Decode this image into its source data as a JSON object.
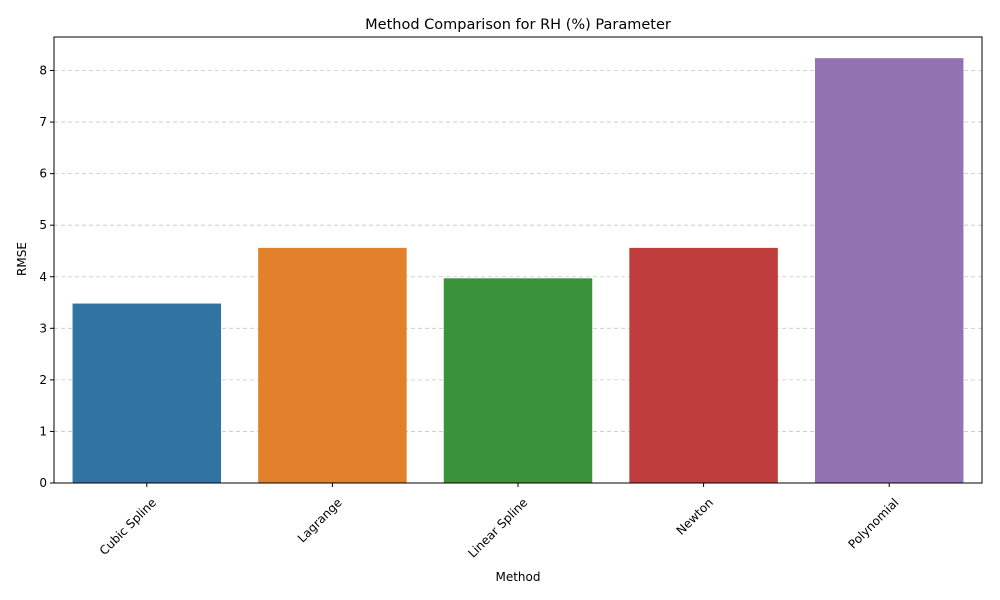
{
  "chart_data": {
    "type": "bar",
    "title": "Method Comparison for RH (%) Parameter",
    "xlabel": "Method",
    "ylabel": "RMSE",
    "categories": [
      "Cubic Spline",
      "Lagrange",
      "Linear Spline",
      "Newton",
      "Polynomial"
    ],
    "values": [
      3.48,
      4.56,
      3.97,
      4.56,
      8.24
    ],
    "colors": [
      "#3274a1",
      "#e1812c",
      "#3a923a",
      "#c03d3e",
      "#9372b2"
    ],
    "ylim": [
      0,
      8.65
    ],
    "yticks": [
      0,
      1,
      2,
      3,
      4,
      5,
      6,
      7,
      8
    ],
    "grid": "y-dashed",
    "xtick_rotation": 45
  }
}
